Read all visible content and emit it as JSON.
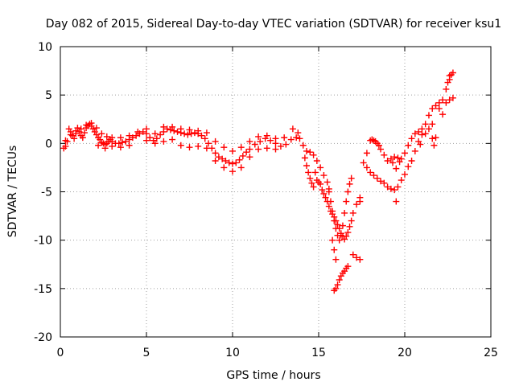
{
  "chart_data": {
    "type": "scatter",
    "title": "Day 082 of 2015, Sidereal Day-to-day VTEC variation (SDTVAR) for receiver ksu1",
    "xlabel": "GPS time / hours",
    "ylabel": "SDTVAR / TECUs",
    "xlim": [
      0,
      25
    ],
    "ylim": [
      -20,
      10
    ],
    "xticks": [
      0,
      5,
      10,
      15,
      20,
      25
    ],
    "xtick_labels": [
      "0",
      "5",
      "10",
      "15",
      "20",
      "25"
    ],
    "yticks": [
      -20,
      -15,
      -10,
      -5,
      0,
      5,
      10
    ],
    "ytick_labels": [
      "-20",
      "-15",
      "-10",
      "-5",
      "0",
      "5",
      "10"
    ],
    "grid": true,
    "marker": "+",
    "color": "#ff0000",
    "series": [
      {
        "name": "main",
        "points": [
          [
            0.2,
            -0.5
          ],
          [
            0.3,
            -0.3
          ],
          [
            0.4,
            0.2
          ],
          [
            0.5,
            1.5
          ],
          [
            0.6,
            1.2
          ],
          [
            0.7,
            0.8
          ],
          [
            0.8,
            0.5
          ],
          [
            0.9,
            1.0
          ],
          [
            1.0,
            1.6
          ],
          [
            1.1,
            1.2
          ],
          [
            1.2,
            0.8
          ],
          [
            1.3,
            0.6
          ],
          [
            1.4,
            1.1
          ],
          [
            1.5,
            1.6
          ],
          [
            1.6,
            1.8
          ],
          [
            1.7,
            2.0
          ],
          [
            1.8,
            1.8
          ],
          [
            1.9,
            1.5
          ],
          [
            2.0,
            1.2
          ],
          [
            2.1,
            0.9
          ],
          [
            2.2,
            0.6
          ],
          [
            2.3,
            0.4
          ],
          [
            2.4,
            0.1
          ],
          [
            2.5,
            0.0
          ],
          [
            2.6,
            -0.1
          ],
          [
            2.7,
            0.0
          ],
          [
            2.8,
            0.2
          ],
          [
            2.9,
            0.4
          ],
          [
            3.0,
            0.2
          ],
          [
            3.2,
            0.0
          ],
          [
            3.4,
            0.0
          ],
          [
            3.6,
            0.1
          ],
          [
            3.8,
            0.2
          ],
          [
            4.0,
            0.4
          ],
          [
            4.2,
            0.6
          ],
          [
            4.4,
            0.8
          ],
          [
            4.6,
            1.0
          ],
          [
            4.8,
            1.2
          ],
          [
            5.0,
            1.0
          ],
          [
            5.2,
            0.6
          ],
          [
            5.4,
            0.3
          ],
          [
            5.6,
            0.5
          ],
          [
            5.8,
            0.9
          ],
          [
            6.0,
            1.2
          ],
          [
            6.2,
            1.5
          ],
          [
            6.4,
            1.4
          ],
          [
            6.6,
            1.3
          ],
          [
            6.8,
            1.2
          ],
          [
            7.0,
            1.1
          ],
          [
            7.2,
            1.0
          ],
          [
            7.4,
            0.9
          ],
          [
            7.6,
            1.0
          ],
          [
            7.8,
            1.1
          ],
          [
            8.0,
            1.0
          ],
          [
            8.2,
            0.8
          ],
          [
            8.4,
            0.5
          ],
          [
            8.6,
            0.0
          ],
          [
            8.8,
            -0.5
          ],
          [
            9.0,
            -1.0
          ],
          [
            9.2,
            -1.4
          ],
          [
            9.4,
            -1.6
          ],
          [
            9.6,
            -1.8
          ],
          [
            9.8,
            -2.0
          ],
          [
            10.0,
            -2.1
          ],
          [
            10.2,
            -2.0
          ],
          [
            10.4,
            -1.7
          ],
          [
            10.6,
            -1.3
          ],
          [
            10.8,
            -0.9
          ],
          [
            11.0,
            -0.6
          ],
          [
            11.3,
            -0.1
          ],
          [
            11.6,
            0.2
          ],
          [
            11.9,
            0.5
          ],
          [
            12.2,
            0.3
          ],
          [
            12.5,
            0.0
          ],
          [
            12.8,
            -0.3
          ],
          [
            13.1,
            -0.1
          ],
          [
            13.4,
            0.4
          ],
          [
            13.7,
            0.6
          ],
          [
            13.9,
            0.5
          ],
          [
            14.1,
            -0.2
          ],
          [
            14.3,
            -0.8
          ],
          [
            14.5,
            -0.9
          ],
          [
            14.7,
            -1.2
          ],
          [
            14.9,
            -1.8
          ],
          [
            15.1,
            -2.5
          ],
          [
            15.3,
            -3.3
          ],
          [
            15.5,
            -4.0
          ],
          [
            15.6,
            -4.7
          ]
        ]
      },
      {
        "name": "upper_band",
        "points": [
          [
            0.3,
            0.3
          ],
          [
            0.6,
            0.9
          ],
          [
            0.9,
            1.3
          ],
          [
            1.2,
            1.5
          ],
          [
            1.5,
            1.9
          ],
          [
            1.8,
            2.1
          ],
          [
            2.1,
            1.6
          ],
          [
            2.4,
            1.0
          ],
          [
            2.7,
            0.7
          ],
          [
            3.0,
            0.6
          ],
          [
            3.5,
            0.6
          ],
          [
            4.0,
            0.8
          ],
          [
            4.5,
            1.2
          ],
          [
            5.0,
            1.5
          ],
          [
            5.5,
            1.0
          ],
          [
            6.0,
            1.7
          ],
          [
            6.5,
            1.7
          ],
          [
            7.0,
            1.5
          ],
          [
            7.5,
            1.4
          ],
          [
            8.0,
            1.3
          ],
          [
            8.5,
            1.1
          ],
          [
            9.0,
            0.2
          ],
          [
            9.5,
            -0.4
          ],
          [
            10.0,
            -0.8
          ],
          [
            10.5,
            -0.4
          ],
          [
            11.0,
            0.2
          ],
          [
            11.5,
            0.7
          ],
          [
            12.0,
            0.8
          ],
          [
            12.5,
            0.5
          ],
          [
            13.0,
            0.6
          ],
          [
            13.5,
            1.5
          ],
          [
            13.8,
            1.1
          ]
        ]
      },
      {
        "name": "lower_band",
        "points": [
          [
            2.2,
            -0.2
          ],
          [
            2.6,
            -0.5
          ],
          [
            3.0,
            -0.3
          ],
          [
            3.5,
            -0.4
          ],
          [
            4.0,
            -0.2
          ],
          [
            5.0,
            0.3
          ],
          [
            5.5,
            0.0
          ],
          [
            6.0,
            0.2
          ],
          [
            6.5,
            0.4
          ],
          [
            7.0,
            -0.2
          ],
          [
            7.5,
            -0.4
          ],
          [
            8.0,
            -0.3
          ],
          [
            8.5,
            -0.5
          ],
          [
            9.0,
            -1.8
          ],
          [
            9.5,
            -2.5
          ],
          [
            10.0,
            -2.9
          ],
          [
            10.5,
            -2.5
          ],
          [
            11.0,
            -1.4
          ],
          [
            11.5,
            -0.6
          ],
          [
            12.0,
            -0.5
          ],
          [
            12.5,
            -0.6
          ]
        ]
      },
      {
        "name": "branch_a",
        "points": [
          [
            14.2,
            -1.5
          ],
          [
            14.3,
            -2.3
          ],
          [
            14.4,
            -3.0
          ],
          [
            14.5,
            -3.6
          ],
          [
            14.6,
            -4.1
          ],
          [
            14.7,
            -4.5
          ],
          [
            14.8,
            -3.0
          ],
          [
            14.9,
            -3.8
          ],
          [
            15.0,
            -4.0
          ],
          [
            15.1,
            -4.2
          ],
          [
            15.2,
            -4.8
          ],
          [
            15.3,
            -5.2
          ],
          [
            15.4,
            -5.6
          ],
          [
            15.5,
            -6.0
          ],
          [
            15.6,
            -6.5
          ],
          [
            15.7,
            -7.0
          ],
          [
            15.8,
            -7.3
          ],
          [
            15.9,
            -7.6
          ],
          [
            16.0,
            -8.0
          ],
          [
            16.1,
            -8.4
          ],
          [
            16.2,
            -8.8
          ],
          [
            16.3,
            -9.3
          ],
          [
            16.4,
            -9.6
          ],
          [
            16.5,
            -9.9
          ],
          [
            16.6,
            -9.6
          ],
          [
            16.7,
            -9.2
          ],
          [
            16.8,
            -8.6
          ],
          [
            16.9,
            -8.0
          ],
          [
            17.0,
            -7.2
          ],
          [
            17.2,
            -6.3
          ],
          [
            17.4,
            -5.6
          ]
        ]
      },
      {
        "name": "branch_b",
        "points": [
          [
            15.6,
            -5.0
          ],
          [
            15.7,
            -6.0
          ],
          [
            15.8,
            -7.0
          ],
          [
            15.9,
            -8.0
          ],
          [
            16.0,
            -8.8
          ],
          [
            16.1,
            -9.5
          ],
          [
            16.2,
            -10.0
          ],
          [
            16.3,
            -9.5
          ],
          [
            16.4,
            -8.5
          ],
          [
            16.5,
            -7.2
          ],
          [
            16.6,
            -6.0
          ],
          [
            16.7,
            -5.0
          ],
          [
            16.8,
            -4.2
          ],
          [
            16.9,
            -3.6
          ]
        ]
      },
      {
        "name": "dip",
        "points": [
          [
            15.8,
            -10.0
          ],
          [
            15.9,
            -11.0
          ],
          [
            16.0,
            -12.0
          ],
          [
            15.9,
            -15.2
          ],
          [
            16.0,
            -15.0
          ],
          [
            16.1,
            -14.6
          ],
          [
            16.2,
            -14.1
          ],
          [
            16.3,
            -13.7
          ],
          [
            16.4,
            -13.4
          ],
          [
            16.5,
            -13.2
          ],
          [
            16.6,
            -12.9
          ],
          [
            16.7,
            -12.7
          ],
          [
            17.0,
            -11.5
          ],
          [
            17.2,
            -11.8
          ],
          [
            17.4,
            -12.0
          ]
        ]
      },
      {
        "name": "recovery",
        "points": [
          [
            17.4,
            -6.0
          ],
          [
            17.6,
            -2.0
          ],
          [
            17.8,
            -1.0
          ],
          [
            18.0,
            0.3
          ],
          [
            18.2,
            0.3
          ],
          [
            18.4,
            0.0
          ],
          [
            18.6,
            -0.6
          ],
          [
            18.8,
            -1.2
          ],
          [
            19.0,
            -1.8
          ],
          [
            19.2,
            -1.6
          ],
          [
            19.4,
            -1.4
          ],
          [
            19.6,
            -1.5
          ],
          [
            19.8,
            -1.6
          ],
          [
            20.0,
            -1.0
          ],
          [
            20.2,
            -0.2
          ],
          [
            20.4,
            0.5
          ],
          [
            20.6,
            1.0
          ],
          [
            20.8,
            1.2
          ],
          [
            21.0,
            1.5
          ],
          [
            21.2,
            2.0
          ],
          [
            21.4,
            2.9
          ],
          [
            21.6,
            3.6
          ],
          [
            21.8,
            3.9
          ],
          [
            22.0,
            4.2
          ],
          [
            22.2,
            4.5
          ],
          [
            22.4,
            5.6
          ],
          [
            22.6,
            6.6
          ],
          [
            22.7,
            7.1
          ]
        ]
      },
      {
        "name": "recovery_lower",
        "points": [
          [
            17.8,
            -2.5
          ],
          [
            18.0,
            -3.0
          ],
          [
            18.2,
            -3.3
          ],
          [
            18.4,
            -3.6
          ],
          [
            18.6,
            -3.9
          ],
          [
            18.8,
            -4.1
          ],
          [
            19.0,
            -4.5
          ],
          [
            19.2,
            -4.7
          ],
          [
            19.4,
            -4.8
          ],
          [
            19.5,
            -6.0
          ],
          [
            19.6,
            -4.5
          ],
          [
            19.8,
            -3.8
          ],
          [
            20.0,
            -3.2
          ],
          [
            20.2,
            -2.4
          ],
          [
            20.4,
            -1.8
          ],
          [
            20.6,
            -0.8
          ],
          [
            20.8,
            0.2
          ],
          [
            21.0,
            0.9
          ],
          [
            21.2,
            1.0
          ],
          [
            21.4,
            1.5
          ],
          [
            21.6,
            2.0
          ],
          [
            21.8,
            0.6
          ],
          [
            22.0,
            3.6
          ],
          [
            22.2,
            3.0
          ],
          [
            22.4,
            4.2
          ],
          [
            22.6,
            4.5
          ],
          [
            22.8,
            4.7
          ]
        ]
      },
      {
        "name": "side_cluster",
        "points": [
          [
            18.1,
            0.4
          ],
          [
            18.3,
            0.2
          ],
          [
            18.5,
            -0.2
          ],
          [
            19.3,
            -2.0
          ],
          [
            19.5,
            -2.6
          ],
          [
            19.7,
            -1.9
          ],
          [
            20.9,
            -0.1
          ],
          [
            21.6,
            0.5
          ],
          [
            21.7,
            -0.2
          ],
          [
            22.5,
            6.3
          ],
          [
            22.6,
            7.0
          ],
          [
            22.8,
            7.3
          ]
        ]
      }
    ]
  }
}
